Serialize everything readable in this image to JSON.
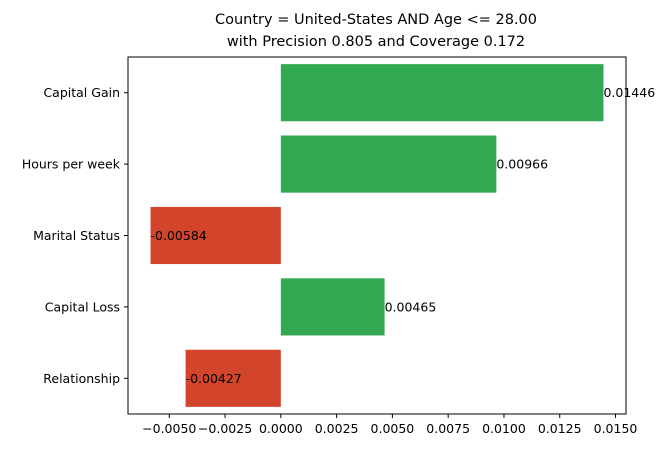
{
  "chart_data": {
    "type": "bar",
    "orientation": "horizontal",
    "title_lines": [
      "Country = United-States AND Age <= 28.00",
      "with Precision 0.805 and Coverage 0.172"
    ],
    "categories": [
      "Capital Gain",
      "Hours per week",
      "Marital Status",
      "Capital Loss",
      "Relationship"
    ],
    "values": [
      0.01446,
      0.00966,
      -0.00584,
      0.00465,
      -0.00427
    ],
    "value_labels": [
      "0.01446",
      "0.00966",
      "-0.00584",
      "0.00465",
      "-0.00427"
    ],
    "xlim": [
      -0.00685,
      0.01547
    ],
    "xticks": [
      -0.005,
      -0.0025,
      0.0,
      0.0025,
      0.005,
      0.0075,
      0.01,
      0.0125,
      0.015
    ],
    "xtick_labels": [
      "−0.0050",
      "−0.0025",
      "0.0000",
      "0.0025",
      "0.0050",
      "0.0075",
      "0.0100",
      "0.0125",
      "0.0150"
    ],
    "colors": {
      "positive": "#33a852",
      "negative": "#d2452a",
      "axis": "#000000"
    },
    "grid": false,
    "legend": "none"
  }
}
